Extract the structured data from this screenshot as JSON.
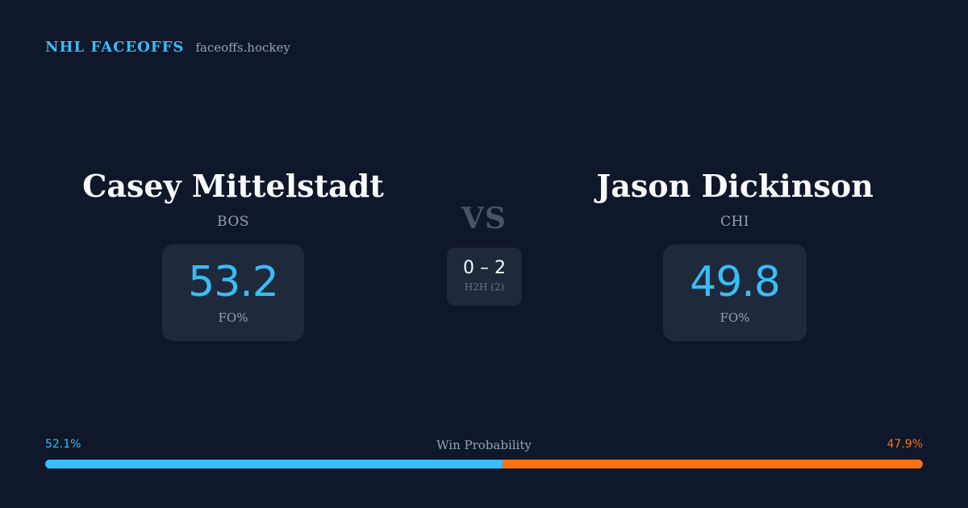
{
  "header": {
    "brand": "NHL FACEOFFS",
    "site": "faceoffs.hockey"
  },
  "player_left": {
    "name": "Casey Mittelstadt",
    "team": "BOS",
    "stat_value": "53.2",
    "stat_label": "FO%"
  },
  "player_right": {
    "name": "Jason Dickinson",
    "team": "CHI",
    "stat_value": "49.8",
    "stat_label": "FO%"
  },
  "versus": {
    "label": "VS",
    "h2h_score": "0 – 2",
    "h2h_label": "H2H (2)"
  },
  "win_probability": {
    "title": "Win Probability",
    "left_label": "52.1%",
    "right_label": "47.9%",
    "left_fraction": 0.521,
    "right_fraction": 0.479,
    "left_color": "#38bdf8",
    "right_color": "#f97316"
  }
}
